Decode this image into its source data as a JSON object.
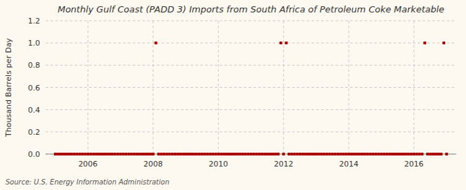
{
  "chart_data": {
    "type": "scatter",
    "title": "Monthly Gulf Coast (PADD 3) Imports from South Africa of Petroleum Coke Marketable",
    "ylabel": "Thousand Barrels per Day",
    "source": "Source: U.S. Energy Information Administration",
    "color": "#aa0000",
    "marker": "square",
    "grid": true,
    "xlim": [
      2004.7,
      2017.3
    ],
    "xticks": [
      2006,
      2008,
      2010,
      2012,
      2014,
      2016
    ],
    "ylim": [
      0.0,
      1.2
    ],
    "yticks": [
      {
        "value": 0.0,
        "label": "0.0"
      },
      0.2,
      0.4,
      0.6,
      0.8,
      {
        "value": 1.0,
        "label": "1.0"
      },
      1.2
    ],
    "x": [
      2005.0,
      2005.083,
      2005.167,
      2005.25,
      2005.333,
      2005.417,
      2005.5,
      2005.583,
      2005.667,
      2005.75,
      2005.833,
      2005.917,
      2006.0,
      2006.083,
      2006.167,
      2006.25,
      2006.333,
      2006.417,
      2006.5,
      2006.583,
      2006.667,
      2006.75,
      2006.833,
      2006.917,
      2007.0,
      2007.083,
      2007.167,
      2007.25,
      2007.333,
      2007.417,
      2007.5,
      2007.583,
      2007.667,
      2007.75,
      2007.833,
      2007.917,
      2008.0,
      2008.083,
      2008.167,
      2008.25,
      2008.333,
      2008.417,
      2008.5,
      2008.583,
      2008.667,
      2008.75,
      2008.833,
      2008.917,
      2009.0,
      2009.083,
      2009.167,
      2009.25,
      2009.333,
      2009.417,
      2009.5,
      2009.583,
      2009.667,
      2009.75,
      2009.833,
      2009.917,
      2010.0,
      2010.083,
      2010.167,
      2010.25,
      2010.333,
      2010.417,
      2010.5,
      2010.583,
      2010.667,
      2010.75,
      2010.833,
      2010.917,
      2011.0,
      2011.083,
      2011.167,
      2011.25,
      2011.333,
      2011.417,
      2011.5,
      2011.583,
      2011.667,
      2011.75,
      2011.833,
      2011.917,
      2012.0,
      2012.083,
      2012.167,
      2012.25,
      2012.333,
      2012.417,
      2012.5,
      2012.583,
      2012.667,
      2012.75,
      2012.833,
      2012.917,
      2013.0,
      2013.083,
      2013.167,
      2013.25,
      2013.333,
      2013.417,
      2013.5,
      2013.583,
      2013.667,
      2013.75,
      2013.833,
      2013.917,
      2014.0,
      2014.083,
      2014.167,
      2014.25,
      2014.333,
      2014.417,
      2014.5,
      2014.583,
      2014.667,
      2014.75,
      2014.833,
      2014.917,
      2015.0,
      2015.083,
      2015.167,
      2015.25,
      2015.333,
      2015.417,
      2015.5,
      2015.583,
      2015.667,
      2015.75,
      2015.833,
      2015.917,
      2016.0,
      2016.083,
      2016.167,
      2016.25,
      2016.333,
      2016.417,
      2016.5,
      2016.583,
      2016.667,
      2016.75,
      2016.833,
      2016.917,
      2017.0
    ],
    "values": [
      0,
      0,
      0,
      0,
      0,
      0,
      0,
      0,
      0,
      0,
      0,
      0,
      0,
      0,
      0,
      0,
      0,
      0,
      0,
      0,
      0,
      0,
      0,
      0,
      0,
      0,
      0,
      0,
      0,
      0,
      0,
      0,
      0,
      0,
      0,
      0,
      0,
      1,
      0,
      0,
      0,
      0,
      0,
      0,
      0,
      0,
      0,
      0,
      0,
      0,
      0,
      0,
      0,
      0,
      0,
      0,
      0,
      0,
      0,
      0,
      0,
      0,
      0,
      0,
      0,
      0,
      0,
      0,
      0,
      0,
      0,
      0,
      0,
      0,
      0,
      0,
      0,
      0,
      0,
      0,
      0,
      0,
      0,
      1,
      0,
      1,
      0,
      0,
      0,
      0,
      0,
      0,
      0,
      0,
      0,
      0,
      0,
      0,
      0,
      0,
      0,
      0,
      0,
      0,
      0,
      0,
      0,
      0,
      0,
      0,
      0,
      0,
      0,
      0,
      0,
      0,
      0,
      0,
      0,
      0,
      0,
      0,
      0,
      0,
      0,
      0,
      0,
      0,
      0,
      0,
      0,
      0,
      0,
      0,
      0,
      0,
      1,
      0,
      0,
      0,
      0,
      0,
      0,
      1,
      0
    ]
  }
}
